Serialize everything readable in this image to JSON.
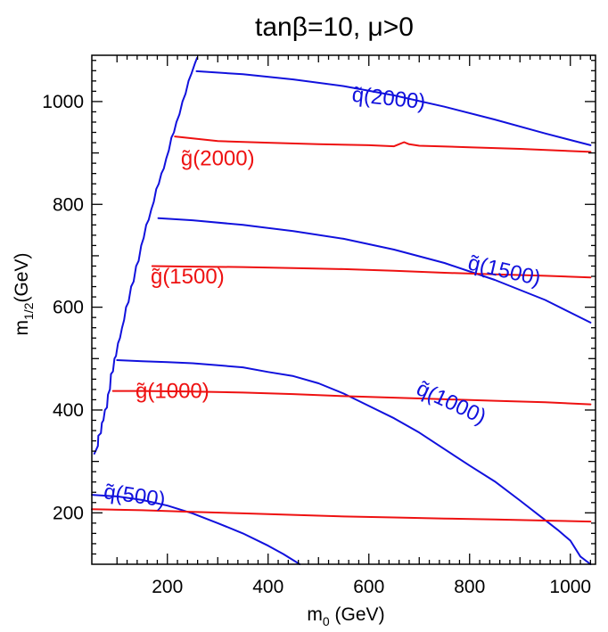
{
  "chart_data": {
    "type": "line",
    "title": "tanβ=10, μ>0",
    "xlabel": {
      "main": "m",
      "sub": "0",
      "unit": " (GeV)"
    },
    "ylabel": {
      "main": "m",
      "sub": "1/2",
      "unit": "(GeV)"
    },
    "xlim": [
      50,
      1050
    ],
    "ylim": [
      100,
      1090
    ],
    "xticks_major": [
      200,
      400,
      600,
      800,
      1000
    ],
    "yticks_major": [
      200,
      400,
      600,
      800,
      1000
    ],
    "grid": false,
    "legend": "none",
    "colors": {
      "gluino": "#ee1111",
      "squark": "#1111dd",
      "boundary": "#1111dd"
    },
    "series": [
      {
        "kind": "boundary",
        "x": [
          55,
          62,
          63,
          68,
          70,
          73,
          76,
          80,
          82,
          86,
          88,
          92,
          95,
          98,
          102,
          106,
          110,
          114,
          118,
          123,
          128,
          133,
          138,
          143,
          148,
          153,
          158,
          163,
          168,
          173,
          178,
          183,
          188,
          193,
          198,
          203,
          208,
          213,
          218,
          224,
          230,
          236,
          242,
          248,
          255,
          259
        ],
        "y": [
          315,
          330,
          350,
          355,
          375,
          380,
          400,
          405,
          430,
          440,
          470,
          475,
          500,
          505,
          530,
          540,
          560,
          575,
          600,
          610,
          640,
          650,
          680,
          690,
          720,
          735,
          760,
          770,
          790,
          805,
          830,
          840,
          860,
          870,
          890,
          905,
          930,
          940,
          960,
          975,
          1000,
          1015,
          1040,
          1055,
          1075,
          1085
        ]
      },
      {
        "kind": "squark",
        "label": "q̃(2000)",
        "label_at": [
          638,
          993
        ],
        "label_rot": 6,
        "x": [
          258,
          350,
          450,
          550,
          650,
          750,
          850,
          950,
          1040
        ],
        "y": [
          1059,
          1053,
          1043,
          1030,
          1012,
          990,
          965,
          938,
          915
        ]
      },
      {
        "kind": "gluino",
        "label": "g̃(2000)",
        "label_at": [
          300,
          876
        ],
        "label_rot": 0,
        "x": [
          215,
          300,
          400,
          500,
          600,
          650,
          660,
          670,
          680,
          700,
          800,
          900,
          1040
        ],
        "y": [
          932,
          923,
          920,
          917,
          915,
          913,
          917,
          921,
          917,
          914,
          911,
          908,
          902
        ]
      },
      {
        "kind": "squark",
        "label": "q̃(1500)",
        "label_at": [
          866,
          658
        ],
        "label_rot": 13,
        "x": [
          182,
          250,
          350,
          450,
          550,
          650,
          750,
          850,
          950,
          1040
        ],
        "y": [
          773,
          769,
          760,
          748,
          733,
          712,
          686,
          653,
          614,
          570
        ]
      },
      {
        "kind": "gluino",
        "label": "g̃(1500)",
        "label_at": [
          240,
          646
        ],
        "label_rot": 0,
        "x": [
          170,
          250,
          350,
          450,
          550,
          650,
          750,
          850,
          950,
          1040
        ],
        "y": [
          680,
          679,
          678,
          676,
          674,
          671,
          667,
          664,
          661,
          658
        ]
      },
      {
        "kind": "squark",
        "label": "q̃(1000)",
        "label_at": [
          758,
          402
        ],
        "label_rot": 25,
        "x": [
          100,
          150,
          200,
          250,
          300,
          350,
          400,
          450,
          500,
          550,
          600,
          650,
          700,
          750,
          800,
          850,
          900,
          950,
          975,
          1000,
          1020,
          1040
        ],
        "y": [
          497,
          495,
          493,
          491,
          487,
          483,
          474,
          466,
          452,
          432,
          408,
          384,
          356,
          324,
          292,
          261,
          224,
          186,
          167,
          146,
          115,
          100
        ]
      },
      {
        "kind": "gluino",
        "label": "g̃(1000)",
        "label_at": [
          210,
          423
        ],
        "label_rot": 0,
        "x": [
          92,
          150,
          250,
          350,
          450,
          550,
          650,
          750,
          850,
          950,
          1040
        ],
        "y": [
          437,
          437,
          436,
          434,
          431,
          427,
          424,
          421,
          418,
          415,
          411
        ]
      },
      {
        "kind": "squark",
        "label": "q̃(500)",
        "label_at": [
          133,
          220
        ],
        "label_rot": 8,
        "x": [
          50,
          100,
          150,
          200,
          250,
          300,
          350,
          400,
          430,
          463
        ],
        "y": [
          235,
          232,
          225,
          214,
          199,
          180,
          160,
          136,
          120,
          100
        ]
      },
      {
        "kind": "gluino",
        "label": "",
        "label_at": null,
        "label_rot": 0,
        "x": [
          50,
          150,
          250,
          350,
          450,
          550,
          650,
          750,
          850,
          950,
          1040
        ],
        "y": [
          207,
          205,
          202,
          199,
          196,
          193,
          191,
          189,
          187,
          185,
          183
        ]
      }
    ]
  }
}
